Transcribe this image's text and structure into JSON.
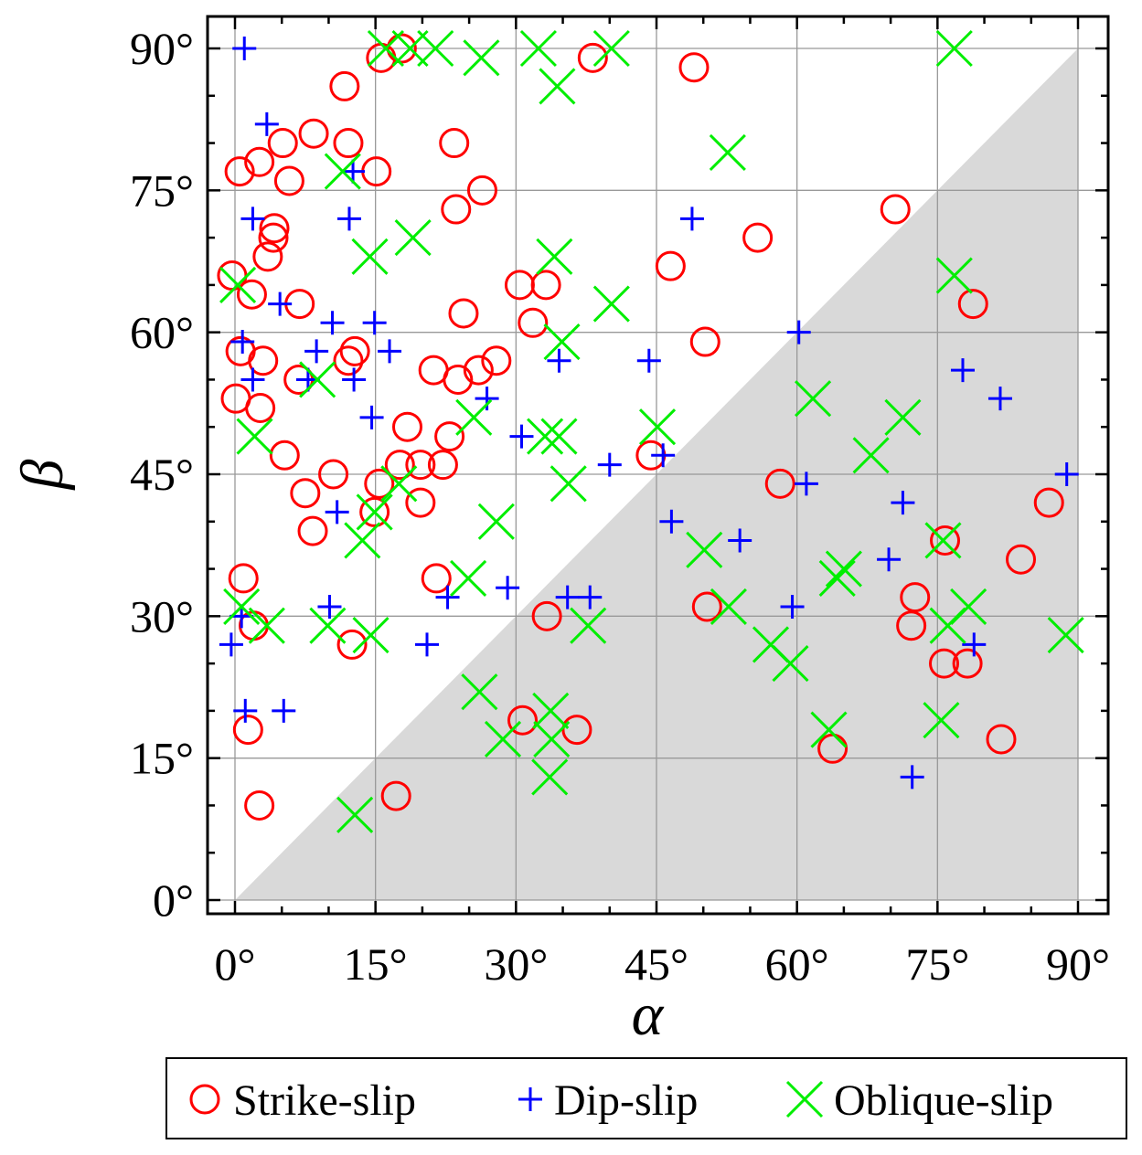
{
  "chart_data": {
    "type": "scatter",
    "xlabel": "α",
    "ylabel": "β",
    "xlim": [
      -5,
      95
    ],
    "ylim": [
      -3,
      93
    ],
    "xticks": [
      0,
      15,
      30,
      45,
      60,
      75,
      90
    ],
    "yticks": [
      0,
      15,
      30,
      45,
      60,
      75,
      90
    ],
    "xtick_labels": [
      "0°",
      "15°",
      "30°",
      "45°",
      "60°",
      "75°",
      "90°"
    ],
    "ytick_labels": [
      "0°",
      "15°",
      "30°",
      "45°",
      "60°",
      "75°",
      "90°"
    ],
    "grid": true,
    "shaded_region": "triangle below the line β = α (β < α)",
    "shade_color": "#d9d9d9",
    "legend_position": "bottom",
    "series": [
      {
        "name": "Strike-slip",
        "marker": "circle",
        "color": "#ff0000",
        "points": [
          [
            17.8,
            90
          ],
          [
            15.6,
            89
          ],
          [
            38.2,
            89
          ],
          [
            49,
            88
          ],
          [
            11.7,
            86
          ],
          [
            8.4,
            81
          ],
          [
            5.1,
            80
          ],
          [
            12.1,
            80
          ],
          [
            23.4,
            80
          ],
          [
            0.5,
            77
          ],
          [
            2.6,
            78
          ],
          [
            15.1,
            77
          ],
          [
            5.8,
            76
          ],
          [
            26.4,
            75
          ],
          [
            23.6,
            73
          ],
          [
            70.5,
            73
          ],
          [
            4.2,
            71
          ],
          [
            4.1,
            70
          ],
          [
            3.5,
            68
          ],
          [
            55.8,
            70
          ],
          [
            46.5,
            67
          ],
          [
            -0.3,
            66
          ],
          [
            1.8,
            64
          ],
          [
            30.4,
            65
          ],
          [
            33.2,
            65
          ],
          [
            6.9,
            63
          ],
          [
            24.4,
            62
          ],
          [
            31.8,
            61
          ],
          [
            78.8,
            63
          ],
          [
            0.6,
            58
          ],
          [
            3,
            57
          ],
          [
            12.1,
            57
          ],
          [
            12.8,
            58
          ],
          [
            50.2,
            59
          ],
          [
            6.8,
            55
          ],
          [
            21.2,
            56
          ],
          [
            23.8,
            55
          ],
          [
            26,
            56
          ],
          [
            27.9,
            57
          ],
          [
            0.1,
            53
          ],
          [
            2.7,
            52
          ],
          [
            18.4,
            50
          ],
          [
            5.3,
            47
          ],
          [
            10.5,
            45
          ],
          [
            17.6,
            46
          ],
          [
            19.8,
            46
          ],
          [
            22.2,
            46
          ],
          [
            22.9,
            49
          ],
          [
            44.4,
            47
          ],
          [
            15.4,
            44
          ],
          [
            7.5,
            43
          ],
          [
            19.8,
            42
          ],
          [
            8.3,
            39
          ],
          [
            14.9,
            41
          ],
          [
            58.2,
            44
          ],
          [
            86.9,
            42
          ],
          [
            0.9,
            34
          ],
          [
            21.5,
            34
          ],
          [
            83.9,
            36
          ],
          [
            75.8,
            38
          ],
          [
            2,
            29
          ],
          [
            12.5,
            27
          ],
          [
            33.3,
            30
          ],
          [
            50.4,
            31
          ],
          [
            72.6,
            32
          ],
          [
            72.2,
            29
          ],
          [
            75.7,
            25
          ],
          [
            78.2,
            25
          ],
          [
            1.4,
            18
          ],
          [
            30.7,
            19
          ],
          [
            36.5,
            18
          ],
          [
            63.8,
            16
          ],
          [
            81.8,
            17
          ],
          [
            2.6,
            10
          ],
          [
            17.2,
            11
          ]
        ]
      },
      {
        "name": "Dip-slip",
        "marker": "plus",
        "color": "#0000ff",
        "points": [
          [
            1,
            90
          ],
          [
            3.4,
            82
          ],
          [
            12.6,
            77
          ],
          [
            1.9,
            72
          ],
          [
            12.2,
            72
          ],
          [
            48.8,
            72
          ],
          [
            4.8,
            63
          ],
          [
            0.8,
            59
          ],
          [
            10.4,
            61
          ],
          [
            14.9,
            61
          ],
          [
            60.2,
            60
          ],
          [
            8.7,
            58
          ],
          [
            16.5,
            58
          ],
          [
            1.9,
            55
          ],
          [
            7.8,
            55
          ],
          [
            12.7,
            55
          ],
          [
            34.6,
            57
          ],
          [
            44.2,
            57
          ],
          [
            14.6,
            51
          ],
          [
            26.9,
            53
          ],
          [
            30.6,
            49
          ],
          [
            77.7,
            56
          ],
          [
            81.7,
            53
          ],
          [
            40,
            46
          ],
          [
            45.7,
            47
          ],
          [
            61,
            44
          ],
          [
            88.8,
            45
          ],
          [
            10.9,
            41
          ],
          [
            46.6,
            40
          ],
          [
            71.3,
            42
          ],
          [
            53.9,
            38
          ],
          [
            69.8,
            36
          ],
          [
            0.7,
            30
          ],
          [
            10.1,
            31
          ],
          [
            22.7,
            32
          ],
          [
            29.1,
            33
          ],
          [
            35.5,
            32
          ],
          [
            37.9,
            32
          ],
          [
            59.5,
            31
          ],
          [
            -0.4,
            27
          ],
          [
            20.5,
            27
          ],
          [
            78.9,
            27
          ],
          [
            1.1,
            20
          ],
          [
            5.2,
            20
          ],
          [
            72.3,
            13
          ]
        ]
      },
      {
        "name": "Oblique-slip",
        "marker": "x",
        "color": "#00ee00",
        "points": [
          [
            16.1,
            90
          ],
          [
            18.7,
            90
          ],
          [
            21.4,
            90
          ],
          [
            26.3,
            89
          ],
          [
            32.4,
            90
          ],
          [
            40.2,
            90
          ],
          [
            76.8,
            90
          ],
          [
            34.4,
            86
          ],
          [
            52.6,
            79
          ],
          [
            11.5,
            77
          ],
          [
            14.4,
            68
          ],
          [
            19,
            70
          ],
          [
            34.1,
            68
          ],
          [
            0.3,
            65
          ],
          [
            40.2,
            63
          ],
          [
            76.8,
            66
          ],
          [
            34.9,
            59
          ],
          [
            8.8,
            55
          ],
          [
            2.1,
            49
          ],
          [
            25.5,
            51
          ],
          [
            33.1,
            49
          ],
          [
            34.6,
            49
          ],
          [
            45.1,
            50
          ],
          [
            71.3,
            51
          ],
          [
            61.7,
            53
          ],
          [
            35.6,
            44
          ],
          [
            67.9,
            47
          ],
          [
            17.5,
            44
          ],
          [
            14.9,
            41
          ],
          [
            13.6,
            38
          ],
          [
            27.9,
            40
          ],
          [
            24.9,
            34
          ],
          [
            50.1,
            37
          ],
          [
            64.3,
            34
          ],
          [
            65,
            35
          ],
          [
            75.6,
            38
          ],
          [
            0.7,
            31
          ],
          [
            3.4,
            29
          ],
          [
            9.9,
            29
          ],
          [
            14.5,
            28
          ],
          [
            37.7,
            29
          ],
          [
            52.7,
            31
          ],
          [
            57.2,
            27
          ],
          [
            59.3,
            25
          ],
          [
            76.1,
            29
          ],
          [
            78.3,
            31
          ],
          [
            88.7,
            28
          ],
          [
            26.1,
            22
          ],
          [
            28.6,
            17
          ],
          [
            33.7,
            20
          ],
          [
            33.8,
            17
          ],
          [
            33.6,
            13
          ],
          [
            63.4,
            18
          ],
          [
            75.4,
            19
          ],
          [
            12.8,
            9
          ]
        ]
      }
    ]
  }
}
